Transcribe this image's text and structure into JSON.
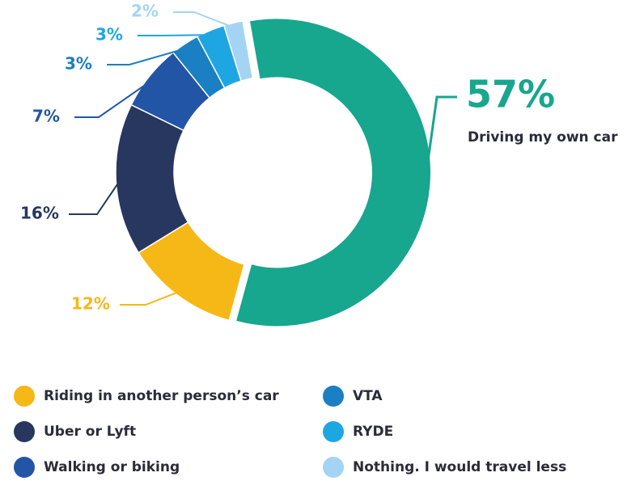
{
  "chart_data": {
    "type": "donut",
    "categories": [
      "Driving my own car",
      "Riding in another person’s car",
      "Uber or Lyft",
      "Walking or biking",
      "VTA",
      "RYDE",
      "Nothing. I would travel less"
    ],
    "values": [
      57,
      12,
      16,
      7,
      3,
      3,
      2
    ],
    "value_labels": [
      "57%",
      "12%",
      "16%",
      "7%",
      "3%",
      "3%",
      "2%"
    ],
    "colors": [
      "#17a68e",
      "#f6b817",
      "#27375f",
      "#2355a6",
      "#1b7fc3",
      "#1ea6e3",
      "#a3d4f3"
    ]
  }
}
